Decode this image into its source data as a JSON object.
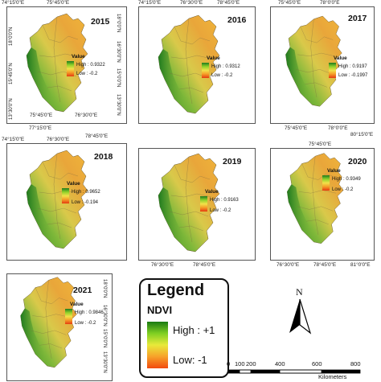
{
  "panels": [
    {
      "id": "2015",
      "year": "2015",
      "value_label": "Value",
      "high": "High : 0.9322",
      "low": "Low : -0.2",
      "top_ticks": [
        "74°15'0\"E",
        "75°45'0\"E",
        "77°15'0\"E",
        "78°45'0\"E",
        "80°15'0\"E"
      ],
      "bottom_ticks": [
        "75°45'0\"E",
        "76°30'0\"E",
        "77°15'0\"E",
        "78°45'0\"E",
        "80°15'0\"E"
      ],
      "left_ticks": [
        "18°0'0\"N",
        "15°45'0\"N",
        "13°30'0\"N",
        "11°15'0\"N"
      ],
      "right_ticks": [
        "18°0'0\"N",
        "16°30'0\"N",
        "15°0'0\"N",
        "13°30'0\"N",
        "12°0'0\"N"
      ]
    },
    {
      "id": "2016",
      "year": "2016",
      "value_label": "Value",
      "high": "High : 0.9312",
      "low": "Low : -0.2",
      "top_ticks": [
        "74°15'0\"E",
        "76°30'0\"E",
        "78°45'0\"E",
        "81°0'0\"E"
      ],
      "bottom_ticks": [],
      "left_ticks": [],
      "right_ticks": [
        "18°0'0\"N",
        "15°45'0\"N",
        "13°30'0\"N",
        "11°15'0\"N"
      ]
    },
    {
      "id": "2017",
      "year": "2017",
      "value_label": "Value",
      "high": "High : 0.9197",
      "low": "Low : -0.1997",
      "top_ticks": [
        "75°45'0\"E",
        "78°0'0\"E"
      ],
      "bottom_ticks": [
        "75°45'0\"E",
        "78°0'0\"E",
        "80°15'0\"E"
      ],
      "left_ticks": [
        "18°0'0\"N",
        "15°45'0\"N",
        "13°30'0\"N"
      ],
      "right_ticks": [
        "18°0'0\"N",
        "15°45'0\"N",
        "13°30'0\"N"
      ]
    },
    {
      "id": "2018",
      "year": "2018",
      "value_label": "Value",
      "high": "High : 0.9652",
      "low": "Low : -0.194",
      "top_ticks": [
        "74°15'0\"E",
        "76°30'0\"E",
        "78°45'0\"E",
        "81°0'0\"E"
      ],
      "bottom_ticks": [],
      "left_ticks": [],
      "right_ticks": [
        "18°0'0\"N",
        "16°30'0\"N",
        "15°0'0\"N",
        "13°30'0\"N",
        "12°0'0\"N"
      ]
    },
    {
      "id": "2019",
      "year": "2019",
      "value_label": "Value",
      "high": "High : 0.9163",
      "low": "Low : -0.2",
      "top_ticks": [],
      "bottom_ticks": [
        "76°30'0\"E",
        "78°45'0\"E"
      ],
      "left_ticks": [
        "18°0'0\"N",
        "15°45'0\"N",
        "13°30'0\"N"
      ],
      "right_ticks": []
    },
    {
      "id": "2020",
      "year": "2020",
      "value_label": "Value",
      "high": "High : 0.9349",
      "low": "Low : -0.2",
      "top_ticks": [
        "75°45'0\"E"
      ],
      "bottom_ticks": [
        "76°30'0\"E",
        "78°45'0\"E",
        "81°0'0\"E"
      ],
      "left_ticks": [],
      "right_ticks": [
        "18°0'0\"N",
        "15°45'0\"N",
        "13°30'0\"N",
        "11°15'0\"N"
      ]
    },
    {
      "id": "2021",
      "year": "2021",
      "value_label": "Value",
      "high": "High : 0.9846",
      "low": "Low : -0.2",
      "top_ticks": [],
      "bottom_ticks": [],
      "left_ticks": [],
      "right_ticks": [
        "18°0'0\"N",
        "16°30'0\"N",
        "15°0'0\"N",
        "13°30'0\"N",
        "12°0'0\"N"
      ]
    }
  ],
  "legend": {
    "title": "Legend",
    "layer": "NDVI",
    "high": "High : +1",
    "low": "Low: -1"
  },
  "north_arrow": {
    "label": "N"
  },
  "scale_bar": {
    "ticks": [
      "0",
      "100",
      "200",
      "400",
      "600",
      "800"
    ],
    "units": "Kilometers"
  },
  "colors": {
    "high": "#1a7a12",
    "mid": "#e8ea3a",
    "low": "#f24a0e"
  }
}
